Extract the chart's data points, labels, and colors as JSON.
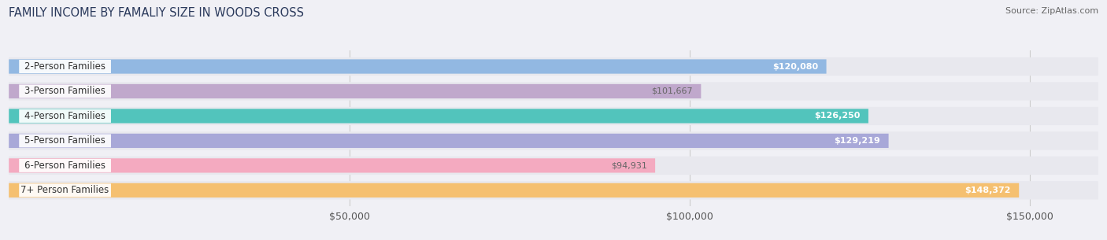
{
  "title": "FAMILY INCOME BY FAMALIY SIZE IN WOODS CROSS",
  "source": "Source: ZipAtlas.com",
  "categories": [
    "2-Person Families",
    "3-Person Families",
    "4-Person Families",
    "5-Person Families",
    "6-Person Families",
    "7+ Person Families"
  ],
  "values": [
    120080,
    101667,
    126250,
    129219,
    94931,
    148372
  ],
  "labels": [
    "$120,080",
    "$101,667",
    "$126,250",
    "$129,219",
    "$94,931",
    "$148,372"
  ],
  "bar_colors": [
    "#92b8e2",
    "#c0a8cc",
    "#52c4bc",
    "#a8a8d8",
    "#f4aac0",
    "#f5c070"
  ],
  "label_colors": [
    "white",
    "#666666",
    "white",
    "white",
    "#666666",
    "white"
  ],
  "track_color": "#e8e8ee",
  "xmax": 160000,
  "xticks": [
    50000,
    100000,
    150000
  ],
  "xticklabels": [
    "$50,000",
    "$100,000",
    "$150,000"
  ],
  "background_color": "#f0f0f5",
  "bar_height": 0.58,
  "track_extra": 0.16,
  "title_fontsize": 10.5,
  "source_fontsize": 8,
  "label_fontsize": 8,
  "tick_fontsize": 9,
  "category_fontsize": 8.5,
  "grid_color": "#cccccc",
  "title_color": "#2b3a5c",
  "category_color": "#333333"
}
